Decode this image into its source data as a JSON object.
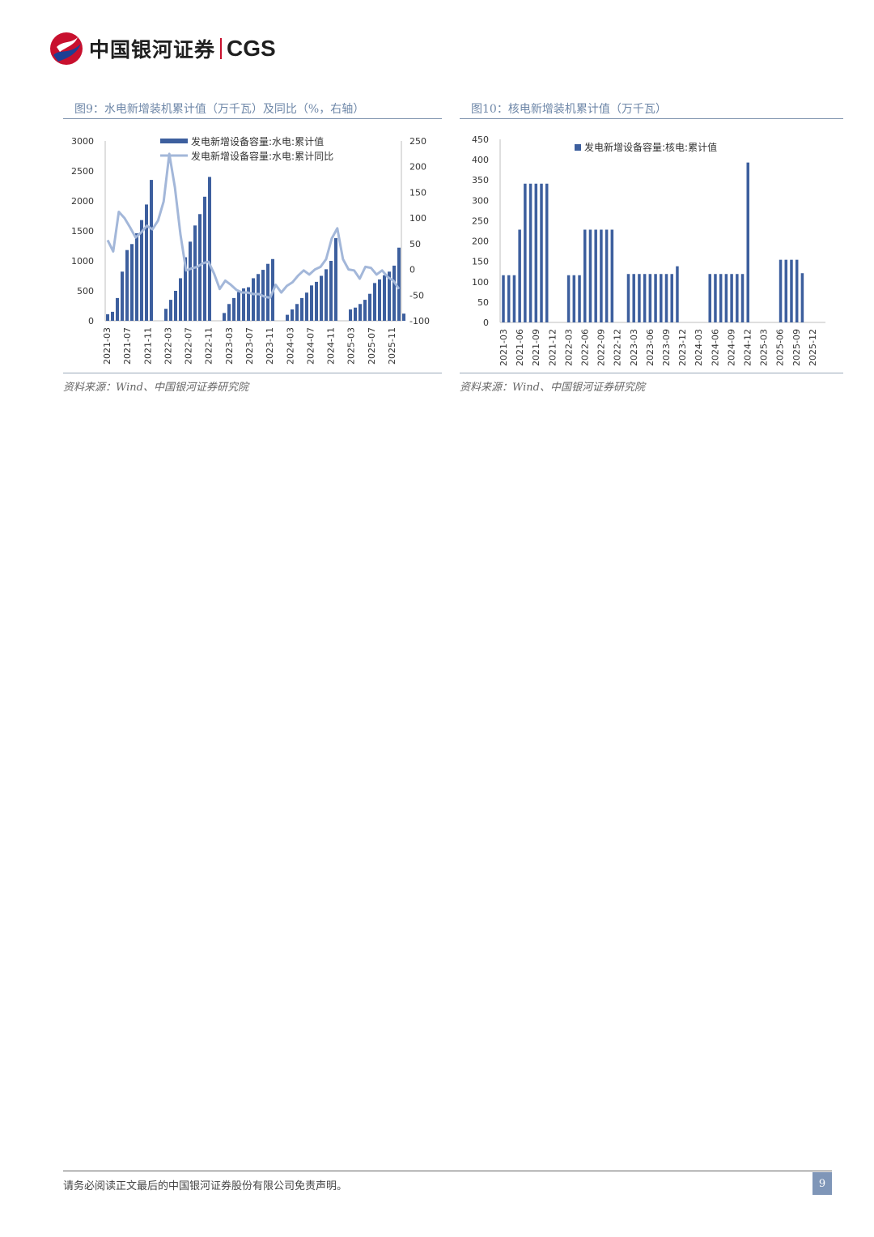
{
  "header": {
    "brand_cn": "中国银河证券",
    "brand_en": "CGS"
  },
  "footer": {
    "disclaimer": "请务必阅读正文最后的中国银河证券股份有限公司免责声明。",
    "page": "9"
  },
  "colors": {
    "bar": "#3d5f9e",
    "line": "#a3b7d9",
    "title": "#6e87a8"
  },
  "charts": [
    {
      "title": "图9：水电新增装机累计值（万千瓦）及同比（%，右轴）",
      "source": "资料来源：Wind、中国银河证券研究院"
    },
    {
      "title": "图10：核电新增装机累计值（万千瓦）",
      "source": "资料来源：Wind、中国银河证券研究院"
    }
  ],
  "chart_data": [
    {
      "type": "bar",
      "title": "图9：水电新增装机累计值（万千瓦）及同比（%，右轴）",
      "x_tick_labels": [
        "2021-03",
        "2021-07",
        "2021-11",
        "2022-03",
        "2022-07",
        "2022-11",
        "2023-03",
        "2023-07",
        "2023-11",
        "2024-03",
        "2024-07",
        "2024-11",
        "2025-03",
        "2025-07",
        "2025-11"
      ],
      "y_left_ticks": [
        "3000",
        "2500",
        "2000",
        "1500",
        "1000",
        "500",
        "0"
      ],
      "y_right_ticks": [
        "250",
        "200",
        "150",
        "100",
        "50",
        "0",
        "-50",
        "-100"
      ],
      "ylim_left": [
        0,
        3000
      ],
      "ylim_right": [
        -100,
        250
      ],
      "legend_position": "top",
      "series": [
        {
          "name": "发电新增设备容量:水电:累计值",
          "type": "bar",
          "axis": "left",
          "values": [
            [
              110,
              150,
              380,
              820,
              1180,
              1280,
              1460,
              1680,
              1940,
              2350
            ],
            [
              200,
              350,
              500,
              710,
              1060,
              1320,
              1590,
              1780,
              2070,
              2400
            ],
            [
              130,
              280,
              380,
              480,
              540,
              560,
              710,
              780,
              850,
              950,
              1030
            ],
            [
              100,
              190,
              280,
              380,
              470,
              590,
              650,
              750,
              860,
              1000,
              1380
            ],
            [
              190,
              220,
              280,
              350,
              450,
              630,
              690,
              760,
              820,
              920,
              1220,
              120
            ]
          ]
        },
        {
          "name": "发电新增设备容量:水电:累计同比",
          "type": "line",
          "axis": "right",
          "values": [
            57,
            35,
            112,
            100,
            82,
            62,
            72,
            85,
            78,
            95,
            132,
            225,
            160,
            68,
            -2,
            2,
            5,
            12,
            15,
            -8,
            -38,
            -22,
            -30,
            -40,
            -45,
            -45,
            -48,
            -48,
            -53,
            -55,
            -30,
            -45,
            -32,
            -25,
            -12,
            -2,
            -10,
            0,
            5,
            20,
            60,
            80,
            20,
            0,
            -2,
            -18,
            5,
            3,
            -10,
            -2,
            -15,
            -22,
            -38
          ]
        }
      ]
    },
    {
      "type": "bar",
      "title": "图10：核电新增装机累计值（万千瓦）",
      "x_tick_labels": [
        "2021-03",
        "2021-06",
        "2021-09",
        "2021-12",
        "2022-03",
        "2022-06",
        "2022-09",
        "2022-12",
        "2023-03",
        "2023-06",
        "2023-09",
        "2023-12",
        "2024-03",
        "2024-06",
        "2024-09",
        "2024-12",
        "2025-03",
        "2025-06",
        "2025-09",
        "2025-12"
      ],
      "y_ticks": [
        "450",
        "400",
        "350",
        "300",
        "250",
        "200",
        "150",
        "100",
        "50",
        "0"
      ],
      "ylim": [
        0,
        450
      ],
      "legend_position": "top",
      "series": [
        {
          "name": "发电新增设备容量:核电:累计值",
          "values": [
            [
              116,
              116,
              116,
              228,
              341,
              341,
              341,
              341,
              341
            ],
            [
              116,
              116,
              116,
              228,
              228,
              228,
              228,
              228,
              228
            ],
            [
              119,
              119,
              119,
              119,
              119,
              119,
              119,
              119,
              119,
              138
            ],
            [
              119,
              119,
              119,
              119,
              119,
              119,
              119,
              393
            ],
            [
              154,
              154,
              154,
              154,
              121
            ]
          ]
        }
      ]
    }
  ]
}
